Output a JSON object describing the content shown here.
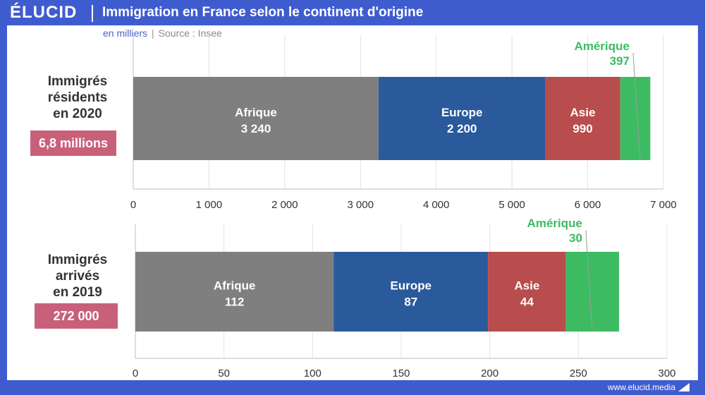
{
  "header": {
    "logo": "ÉLUCID",
    "title": "Immigration en France selon le continent d'origine"
  },
  "subtitle": {
    "unit": "en milliers",
    "source": "Source : Insee"
  },
  "footer": {
    "url": "www.elucid.media"
  },
  "colors": {
    "Afrique": "#7f7f7f",
    "Europe": "#2a5a9b",
    "Asie": "#b94c4c",
    "Amérique": "#3dbb63",
    "brand": "#3f5ccf",
    "badge": "#c9607a"
  },
  "chart_data": [
    {
      "type": "bar",
      "orientation": "horizontal-stacked",
      "row_label": "Immigrés résidents en 2020",
      "row_label_lines": [
        "Immigrés",
        "résidents",
        "en 2020"
      ],
      "total_label": "6,8 millions",
      "categories": [
        "Afrique",
        "Europe",
        "Asie",
        "Amérique"
      ],
      "value_labels": [
        "3 240",
        "2 200",
        "990",
        "397"
      ],
      "values": [
        3240,
        2200,
        990,
        397
      ],
      "xlim": [
        0,
        7000
      ],
      "ticks": [
        0,
        1000,
        2000,
        3000,
        4000,
        5000,
        6000,
        7000
      ],
      "tick_labels": [
        "0",
        "1 000",
        "2 000",
        "3 000",
        "4 000",
        "5 000",
        "6 000",
        "7 000"
      ],
      "grid": true
    },
    {
      "type": "bar",
      "orientation": "horizontal-stacked",
      "row_label": "Immigrés arrivés en 2019",
      "row_label_lines": [
        "Immigrés",
        "arrivés",
        "en 2019"
      ],
      "total_label": "272 000",
      "categories": [
        "Afrique",
        "Europe",
        "Asie",
        "Amérique"
      ],
      "value_labels": [
        "112",
        "87",
        "44",
        "30"
      ],
      "values": [
        112,
        87,
        44,
        30
      ],
      "xlim": [
        0,
        300
      ],
      "ticks": [
        0,
        50,
        100,
        150,
        200,
        250,
        300
      ],
      "tick_labels": [
        "0",
        "50",
        "100",
        "150",
        "200",
        "250",
        "300"
      ],
      "grid": true
    }
  ]
}
